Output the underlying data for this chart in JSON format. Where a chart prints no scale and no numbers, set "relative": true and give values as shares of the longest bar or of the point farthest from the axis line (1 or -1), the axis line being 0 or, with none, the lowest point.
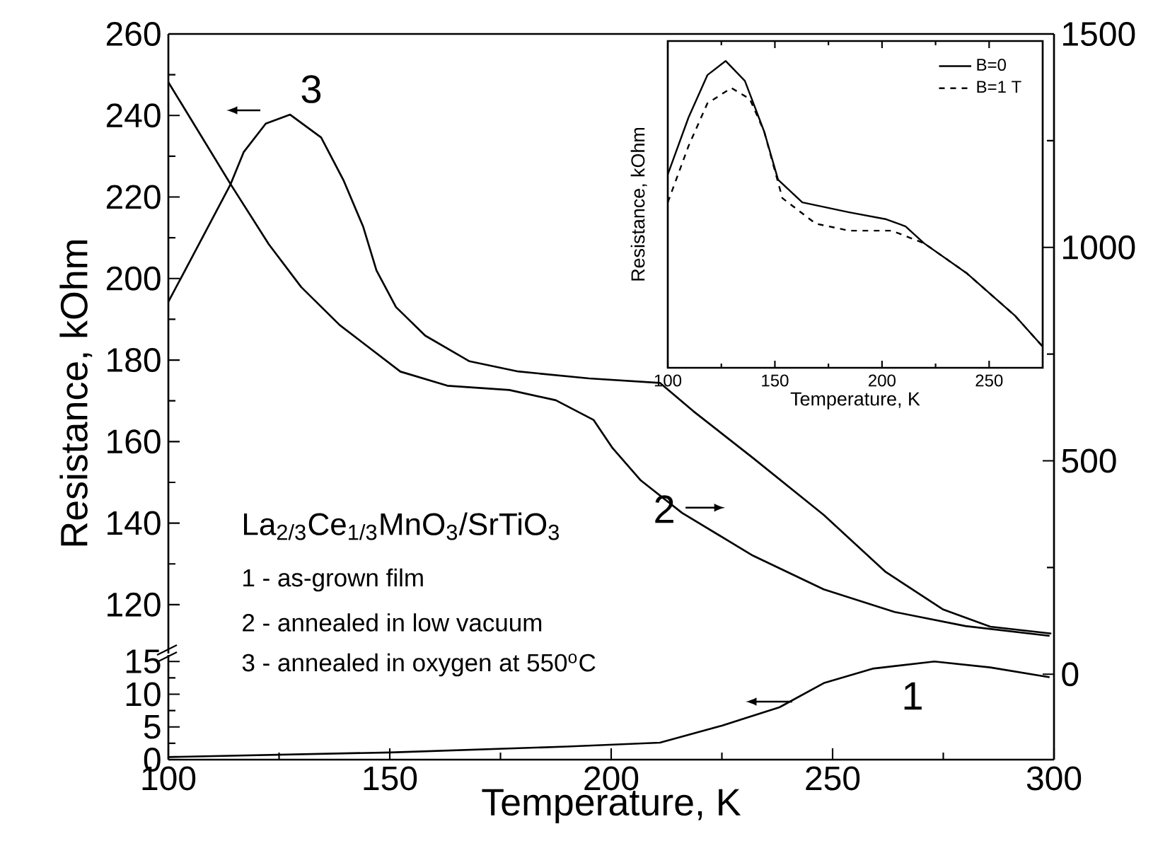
{
  "chart_data": [
    {
      "type": "line",
      "ylabel": "Resistance, kOhm",
      "xlim": [
        100,
        300
      ],
      "ylim": [
        108,
        260
      ],
      "yticks": [
        120,
        140,
        160,
        180,
        200,
        220,
        240,
        260
      ],
      "tick_labels": "y",
      "series": [
        {
          "color": "#000000",
          "x": [
            100,
            106.7,
            114,
            117,
            122,
            127.5,
            134.5,
            139.6,
            144,
            147,
            151.4,
            158,
            168,
            179,
            195,
            211,
            218.5,
            232,
            248,
            262,
            275,
            285.6,
            299.4
          ],
          "values": [
            194.3,
            208,
            223,
            231,
            238,
            240.2,
            234.6,
            224,
            212.7,
            202,
            193,
            186,
            179.7,
            177.2,
            175.5,
            174.4,
            167.5,
            156,
            142,
            128,
            118.8,
            114.6,
            112.9
          ]
        }
      ],
      "annotations": [
        "La$_{2/3}$Ce$_{1/3}$MnO$_{3}$/SrTiO$_{3}$",
        "1 - as-grown film",
        "2 - annealed in low vacuum",
        "3 - annealed in oxygen at 550$^{o}$C",
        "3"
      ]
    },
    {
      "type": "line",
      "xlabel": "Temperature, K",
      "xlim": [
        100,
        300
      ],
      "ylim": [
        0,
        16
      ],
      "xticks": [
        100,
        150,
        200,
        250,
        300
      ],
      "yticks": [
        0,
        5,
        10,
        15
      ],
      "series": [
        {
          "color": "#000000",
          "x": [
            100,
            150,
            190,
            211,
            225,
            238,
            248,
            259,
            273,
            285.6,
            299
          ],
          "values": [
            0.4,
            1.1,
            2,
            2.6,
            5.2,
            8,
            11.7,
            13.9,
            15,
            14.1,
            12.6
          ]
        }
      ],
      "annotations": [
        "1"
      ]
    },
    {
      "type": "line",
      "xlim": [
        100,
        300
      ],
      "ylim": [
        -200,
        1500
      ],
      "yticks": [
        0,
        500,
        1000,
        1500
      ],
      "tick_labels": "y",
      "series": [
        {
          "color": "#000000",
          "x": [
            100,
            114,
            122.7,
            130,
            138.7,
            152.4,
            163,
            177,
            187.5,
            196,
            200.3,
            206.7,
            216,
            232,
            248,
            264,
            280,
            299
          ],
          "values": [
            1387,
            1149,
            1007,
            907,
            818,
            709,
            676,
            666,
            642,
            596,
            530,
            454,
            378,
            278,
            199,
            146,
            113,
            90
          ]
        }
      ],
      "annotations": [
        {
          "text": "2",
          "x": 212,
          "y": 387
        }
      ]
    },
    {
      "type": "line",
      "relative": true,
      "xlabel": "Temperature, K",
      "ylabel": "Resistance, kOhm",
      "xlim": [
        100,
        275
      ],
      "xticks": [
        100,
        150,
        200,
        250
      ],
      "legend": "top right",
      "series": [
        {
          "name": "B=0",
          "color": "#000000",
          "line_style": "solid",
          "x": [
            100,
            109.7,
            118.5,
            127,
            136,
            145,
            151.5,
            162.8,
            184.6,
            202,
            211,
            219.6,
            239.4,
            261.9,
            275
          ],
          "values": [
            0.63,
            0.816,
            0.954,
            1,
            0.935,
            0.77,
            0.613,
            0.539,
            0.507,
            0.484,
            0.461,
            0.406,
            0.309,
            0.171,
            0.069
          ]
        },
        {
          "name": "B=1 T",
          "color": "#000000",
          "line_style": "dashed",
          "x": [
            100,
            109.7,
            118.5,
            129.7,
            138.3,
            145,
            153.5,
            169,
            184.6,
            204.5,
            219.6,
            239.4,
            261.9,
            275
          ],
          "values": [
            0.539,
            0.723,
            0.862,
            0.912,
            0.876,
            0.77,
            0.553,
            0.47,
            0.447,
            0.447,
            0.406,
            0.309,
            0.171,
            0.069
          ]
        }
      ]
    }
  ]
}
